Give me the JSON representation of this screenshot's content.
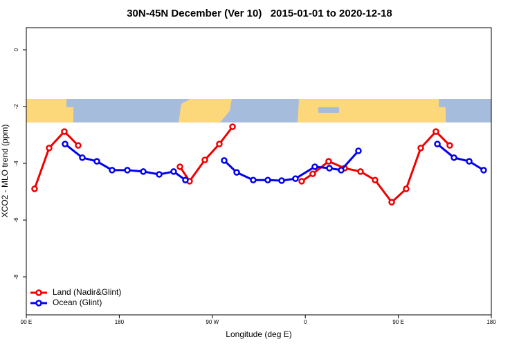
{
  "chart_data": {
    "type": "line",
    "title": "30N-45N December (Ver 10)   2015-01-01 to 2020-12-18",
    "x_label": "Longitude (deg E)",
    "y_label": "XCO2 - MLO trend (ppm)",
    "xlim": [
      90,
      540
    ],
    "xticks": [
      {
        "value": 90,
        "label": "90 E"
      },
      {
        "value": 180,
        "label": "180"
      },
      {
        "value": 270,
        "label": "90 W"
      },
      {
        "value": 360,
        "label": "0"
      },
      {
        "value": 450,
        "label": "90 E"
      },
      {
        "value": 540,
        "label": "180"
      }
    ],
    "ylim": [
      -9.34,
      0.78
    ],
    "yticks": [
      0,
      -2,
      -4,
      -6,
      -8
    ],
    "legend": "bottom-left",
    "series": [
      {
        "name": "Land (Nadir&Glint)",
        "color": "#ee0000",
        "x": [
          98.0,
          112.1,
          126.8,
          140.2,
          null,
          238.7,
          248.0,
          262.8,
          276.8,
          289.6,
          null,
          356.5,
          367.2,
          382.6,
          398.0,
          413.4,
          427.5,
          443.6,
          457.6,
          471.7,
          486.4,
          499.8
        ],
        "values": [
          -4.9,
          -3.46,
          -2.88,
          -3.37,
          null,
          -4.12,
          -4.63,
          -3.88,
          -3.32,
          -2.71,
          null,
          -4.63,
          -4.37,
          -3.93,
          -4.17,
          -4.29,
          -4.59,
          -5.37,
          -4.9,
          -3.46,
          -2.88,
          -3.37
        ]
      },
      {
        "name": "Ocean (Glint)",
        "color": "#0000ee",
        "x": [
          127.5,
          144.2,
          158.3,
          173.0,
          187.8,
          203.2,
          218.6,
          232.6,
          244.0,
          null,
          281.5,
          293.6,
          309.6,
          323.7,
          337.1,
          350.5,
          369.2,
          383.3,
          394.7,
          411.4,
          null,
          487.8,
          503.9,
          518.6,
          532.6
        ],
        "values": [
          -3.32,
          -3.8,
          -3.93,
          -4.24,
          -4.24,
          -4.29,
          -4.39,
          -4.29,
          -4.59,
          null,
          -3.9,
          -4.32,
          -4.59,
          -4.59,
          -4.61,
          -4.54,
          -4.12,
          -4.17,
          -4.24,
          -3.56,
          null,
          -3.32,
          -3.8,
          -3.93,
          -4.24
        ]
      }
    ]
  }
}
